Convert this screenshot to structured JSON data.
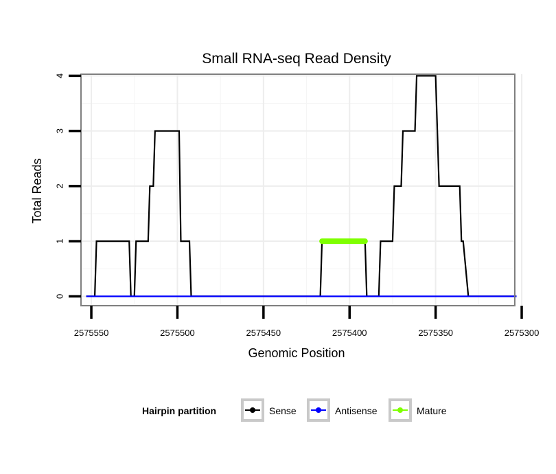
{
  "chart_data": {
    "type": "line",
    "title": "Small RNA-seq Read Density",
    "xlabel": "Genomic Position",
    "ylabel": "Total Reads",
    "xlim": [
      2575304,
      2575556
    ],
    "x_reversed": true,
    "ylim": [
      -0.17,
      4.03
    ],
    "x_ticks": [
      2575550,
      2575500,
      2575450,
      2575400,
      2575350,
      2575300
    ],
    "x_tick_labels": [
      "2575550",
      "2575500",
      "2575450",
      "2575400",
      "2575350",
      "2575300"
    ],
    "y_ticks": [
      0,
      1,
      2,
      3,
      4
    ],
    "y_tick_labels": [
      "0",
      "1",
      "2",
      "3",
      "4"
    ],
    "grid": true,
    "legend": {
      "title": "Hairpin partition",
      "placement": "bottom"
    },
    "series": [
      {
        "name": "Sense",
        "color": "#000000",
        "points": [
          [
            2575553,
            0
          ],
          [
            2575548,
            0
          ],
          [
            2575547,
            1
          ],
          [
            2575528,
            1
          ],
          [
            2575527,
            0
          ],
          [
            2575525,
            0
          ],
          [
            2575524,
            1
          ],
          [
            2575517,
            1
          ],
          [
            2575516,
            2
          ],
          [
            2575514,
            2
          ],
          [
            2575513,
            3
          ],
          [
            2575499,
            3
          ],
          [
            2575498,
            1
          ],
          [
            2575493,
            1
          ],
          [
            2575492,
            0
          ],
          [
            2575417,
            0
          ],
          [
            2575416,
            1
          ],
          [
            2575391,
            1
          ],
          [
            2575390,
            0
          ],
          [
            2575383,
            0
          ],
          [
            2575382,
            1
          ],
          [
            2575375,
            1
          ],
          [
            2575374,
            2
          ],
          [
            2575370,
            2
          ],
          [
            2575369,
            3
          ],
          [
            2575362,
            3
          ],
          [
            2575361,
            4
          ],
          [
            2575350,
            4
          ],
          [
            2575349,
            3
          ],
          [
            2575348,
            2
          ],
          [
            2575336,
            2
          ],
          [
            2575335,
            1
          ],
          [
            2575334,
            1
          ],
          [
            2575331,
            0
          ],
          [
            2575303,
            0
          ]
        ]
      },
      {
        "name": "Antisense",
        "color": "#0000ff",
        "points": [
          [
            2575553,
            0
          ],
          [
            2575303,
            0
          ]
        ]
      },
      {
        "name": "Mature",
        "color": "#7fff00",
        "points": [
          [
            2575416,
            1
          ],
          [
            2575391,
            1
          ]
        ]
      }
    ]
  }
}
